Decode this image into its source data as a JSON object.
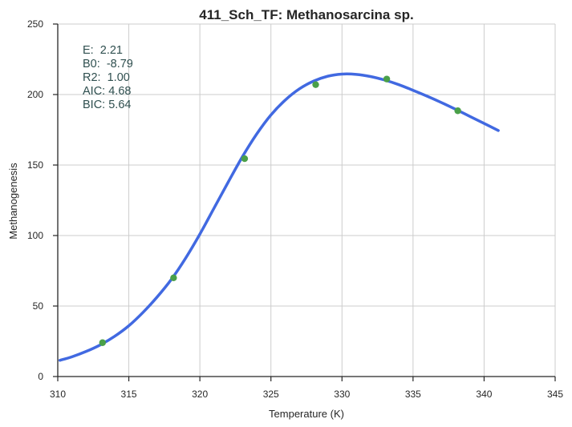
{
  "chart_data": {
    "type": "line",
    "title": "411_Sch_TF: Methanosarcina sp.",
    "xlabel": "Temperature (K)",
    "ylabel": "Methanogenesis",
    "xlim": [
      310,
      345
    ],
    "ylim": [
      0,
      250
    ],
    "xticks": [
      310,
      315,
      320,
      325,
      330,
      335,
      340,
      345
    ],
    "yticks": [
      0,
      50,
      100,
      150,
      200,
      250
    ],
    "grid": true,
    "legend": "none",
    "colors": {
      "fit_line": "#4169e1",
      "points": "#4aa049",
      "annotation": "#2f4f4f",
      "grid": "#cccccc",
      "axis": "#262626"
    },
    "points": {
      "x": [
        313.15,
        318.15,
        323.15,
        328.15,
        333.15,
        338.15
      ],
      "y": [
        24,
        70,
        154.5,
        207,
        211,
        188.5
      ]
    },
    "fit_curve": {
      "x": [
        310.15,
        311.0,
        312.0,
        313.0,
        314.0,
        315.0,
        316.0,
        317.0,
        318.0,
        319.0,
        320.0,
        321.0,
        322.0,
        323.0,
        324.0,
        325.0,
        326.0,
        327.0,
        328.0,
        329.0,
        330.0,
        331.0,
        332.0,
        333.0,
        334.0,
        335.0,
        336.0,
        337.0,
        338.0,
        339.0,
        340.0,
        341.0
      ],
      "y": [
        11.5,
        14,
        17.8,
        22.5,
        28.5,
        36,
        45.5,
        56.5,
        69,
        84,
        101,
        119.5,
        138,
        156,
        172,
        185.5,
        196,
        204,
        209.5,
        213,
        214.5,
        214.3,
        212.8,
        210.3,
        207,
        203,
        198.8,
        194.3,
        189.5,
        184.5,
        179.5,
        174.5
      ]
    },
    "annotations": [
      "E:  2.21",
      "B0:  -8.79",
      "R2:  1.00",
      "AIC: 4.68",
      "BIC: 5.64"
    ]
  }
}
